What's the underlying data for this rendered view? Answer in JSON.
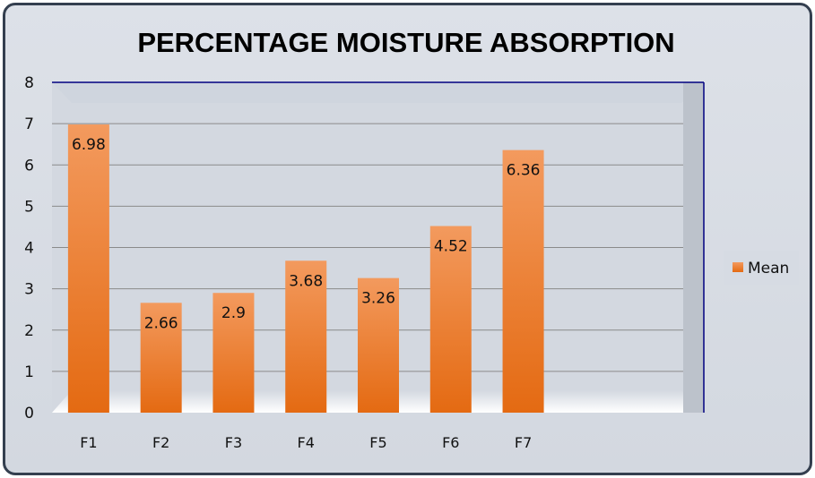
{
  "chart_data": {
    "type": "bar",
    "title": "PERCENTAGE MOISTURE ABSORPTION",
    "categories": [
      "F1",
      "F2",
      "F3",
      "F4",
      "F5",
      "F6",
      "F7"
    ],
    "series": [
      {
        "name": "Mean",
        "values": [
          6.98,
          2.66,
          2.9,
          3.68,
          3.26,
          4.52,
          6.36
        ]
      }
    ],
    "data_labels": [
      "6.98",
      "2.66",
      "2.9",
      "3.68",
      "3.26",
      "4.52",
      "6.36"
    ],
    "ylim": [
      0,
      8
    ],
    "yticks": [
      "0",
      "1",
      "2",
      "3",
      "4",
      "5",
      "6",
      "7",
      "8"
    ],
    "xlabel": "",
    "ylabel": "",
    "grid": true,
    "legend": "right",
    "colors": {
      "bar_top": "#f39a5e",
      "bar_bottom": "#e46a12",
      "grid": "#8a8a8a",
      "axis": "#000080"
    }
  }
}
